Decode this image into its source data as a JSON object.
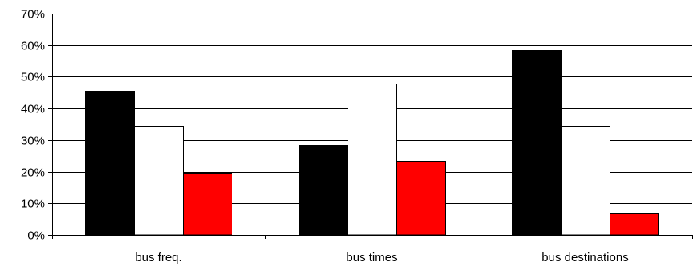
{
  "chart_data": {
    "type": "bar",
    "title": "",
    "xlabel": "",
    "ylabel": "",
    "categories": [
      "bus freq.",
      "bus times",
      "bus destinations"
    ],
    "series": [
      {
        "values": [
          45.5,
          28.5,
          58.5
        ],
        "color": "#000000"
      },
      {
        "values": [
          34.5,
          47.8,
          34.5
        ],
        "color": "#ffffff"
      },
      {
        "values": [
          19.7,
          23.5,
          6.9
        ],
        "color": "#ff0000"
      }
    ],
    "ylim": [
      0,
      70
    ],
    "yticks": [
      0,
      10,
      20,
      30,
      40,
      50,
      60,
      70
    ],
    "ytick_labels": [
      "0%",
      "10%",
      "20%",
      "30%",
      "40%",
      "50%",
      "60%",
      "70%"
    ],
    "grid": true,
    "legend": "none"
  }
}
